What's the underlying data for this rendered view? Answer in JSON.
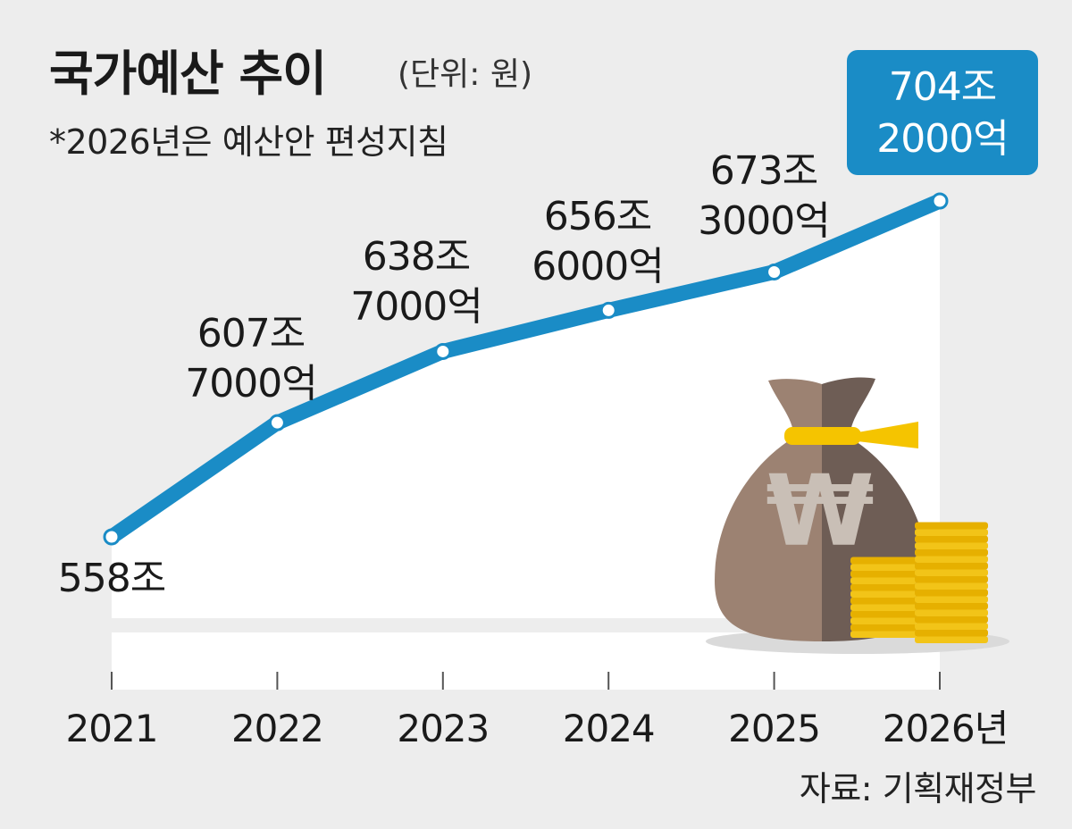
{
  "title": "국가예산 추이",
  "unit": "(단위: 원)",
  "note": "*2026년은 예산안 편성지침",
  "source": "자료: 기획재정부",
  "colors": {
    "line": "#1a8cc6",
    "highlight_box": "#1a8cc6",
    "area": "#ffffff",
    "background": "#ededed"
  },
  "illustration": {
    "bag": "money-bag-icon",
    "symbol": "₩",
    "coins": "gold-coins-icon"
  },
  "chart_data": {
    "type": "area",
    "x": [
      "2021",
      "2022",
      "2023",
      "2024",
      "2025",
      "2026년"
    ],
    "series": [
      {
        "values": [
          558,
          607.7,
          638.7,
          656.6,
          673.3,
          704.2
        ]
      }
    ],
    "data_labels": [
      [
        "558조"
      ],
      [
        "607조",
        "7000억"
      ],
      [
        "638조",
        "7000억"
      ],
      [
        "656조",
        "6000억"
      ],
      [
        "673조",
        "3000억"
      ],
      [
        "704조",
        "2000억"
      ]
    ],
    "highlight_index": 5,
    "ylabel": "",
    "xlabel": "",
    "grid": false,
    "legend": "none"
  }
}
